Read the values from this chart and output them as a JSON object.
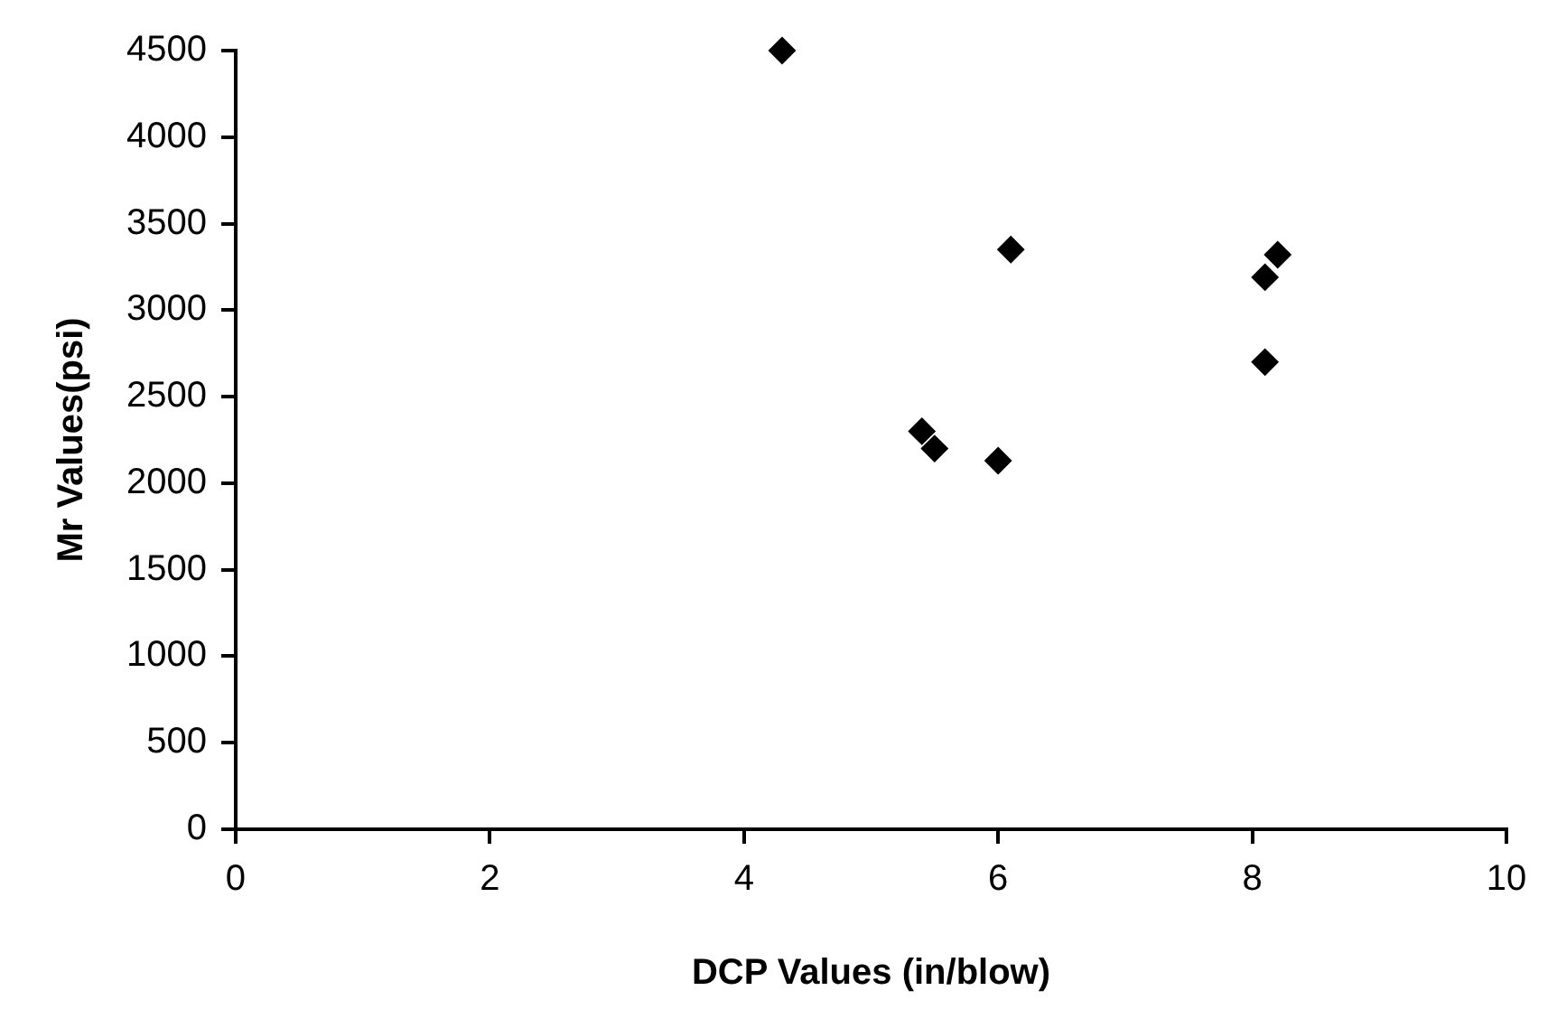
{
  "chart_data": {
    "type": "scatter",
    "xlabel": "DCP Values (in/blow)",
    "ylabel": "Mr Values(psi)",
    "x": [
      4.3,
      6.1,
      8.2,
      8.1,
      8.1,
      5.4,
      5.5,
      6.0
    ],
    "series": [
      {
        "color": "#000000",
        "values": [
          4500,
          3350,
          3320,
          3190,
          2700,
          2300,
          2200,
          2130
        ]
      }
    ],
    "xlim": [
      0,
      10
    ],
    "xticks": [
      0,
      2,
      4,
      6,
      8,
      10
    ],
    "ylim": [
      0,
      4500
    ],
    "yticks": [
      0,
      500,
      1000,
      1500,
      2000,
      2500,
      3000,
      3500,
      4000,
      4500
    ],
    "grid": false,
    "legend": false,
    "marker": "diamond"
  }
}
